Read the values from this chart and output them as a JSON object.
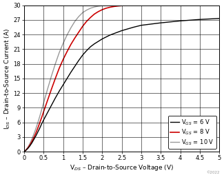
{
  "xlabel": "V$_{DS}$ – Drain-to-Source Voltage (V)",
  "ylabel": "I$_{DS}$ – Drain-to-Source Current (A)",
  "xlim": [
    0,
    5
  ],
  "ylim": [
    0,
    30
  ],
  "xticks": [
    0,
    0.5,
    1,
    1.5,
    2,
    2.5,
    3,
    3.5,
    4,
    4.5,
    5
  ],
  "yticks": [
    0,
    3,
    6,
    9,
    12,
    15,
    18,
    21,
    24,
    27,
    30
  ],
  "legend": [
    {
      "label": "V$_{GS}$ = 6 V",
      "color": "#000000",
      "lw": 1.0
    },
    {
      "label": "V$_{GS}$ = 8 V",
      "color": "#cc0000",
      "lw": 1.2
    },
    {
      "label": "V$_{GS}$ = 10 V",
      "color": "#999999",
      "lw": 1.0
    }
  ],
  "curves": {
    "vgs6": {
      "color": "#000000",
      "lw": 1.0,
      "x": [
        0.0,
        0.05,
        0.1,
        0.15,
        0.2,
        0.25,
        0.3,
        0.35,
        0.4,
        0.45,
        0.5,
        0.6,
        0.7,
        0.8,
        0.9,
        1.0,
        1.1,
        1.2,
        1.3,
        1.4,
        1.5,
        1.6,
        1.7,
        1.8,
        1.9,
        2.0,
        2.2,
        2.5,
        2.8,
        3.0,
        3.5,
        4.0,
        4.5,
        5.0
      ],
      "y": [
        0.0,
        0.3,
        0.7,
        1.2,
        1.8,
        2.5,
        3.2,
        4.0,
        4.8,
        5.7,
        6.5,
        8.0,
        9.5,
        11.0,
        12.4,
        13.7,
        15.0,
        16.3,
        17.5,
        18.7,
        19.8,
        20.7,
        21.5,
        22.1,
        22.6,
        23.1,
        23.9,
        24.8,
        25.5,
        25.9,
        26.4,
        26.8,
        27.1,
        27.3
      ]
    },
    "vgs8": {
      "color": "#cc0000",
      "lw": 1.2,
      "x": [
        0.0,
        0.05,
        0.1,
        0.15,
        0.2,
        0.25,
        0.3,
        0.35,
        0.4,
        0.45,
        0.5,
        0.6,
        0.7,
        0.8,
        0.9,
        1.0,
        1.1,
        1.2,
        1.3,
        1.4,
        1.5,
        1.6,
        1.7,
        1.8,
        1.9,
        2.0,
        2.1,
        2.2,
        2.3,
        2.4,
        2.5,
        2.6,
        2.7
      ],
      "y": [
        0.0,
        0.35,
        0.8,
        1.4,
        2.1,
        2.9,
        3.8,
        4.8,
        5.9,
        7.0,
        8.2,
        10.5,
        12.8,
        15.0,
        17.1,
        18.9,
        20.5,
        22.0,
        23.3,
        24.5,
        25.7,
        26.7,
        27.5,
        28.2,
        28.7,
        29.1,
        29.4,
        29.6,
        29.75,
        29.85,
        29.92,
        29.96,
        29.98
      ]
    },
    "vgs10": {
      "color": "#999999",
      "lw": 1.0,
      "x": [
        0.0,
        0.05,
        0.1,
        0.15,
        0.2,
        0.25,
        0.3,
        0.35,
        0.4,
        0.45,
        0.5,
        0.6,
        0.7,
        0.8,
        0.9,
        1.0,
        1.1,
        1.2,
        1.3,
        1.4,
        1.5,
        1.6,
        1.7,
        1.8,
        1.9,
        2.0,
        2.1
      ],
      "y": [
        0.0,
        0.4,
        0.95,
        1.7,
        2.6,
        3.6,
        4.7,
        5.9,
        7.2,
        8.6,
        10.0,
        12.8,
        15.5,
        18.0,
        20.3,
        22.2,
        23.9,
        25.4,
        26.7,
        27.7,
        28.5,
        29.0,
        29.4,
        29.65,
        29.82,
        29.92,
        30.0
      ]
    }
  },
  "copyright": "©2022",
  "background_color": "#ffffff",
  "grid_color": "#000000"
}
